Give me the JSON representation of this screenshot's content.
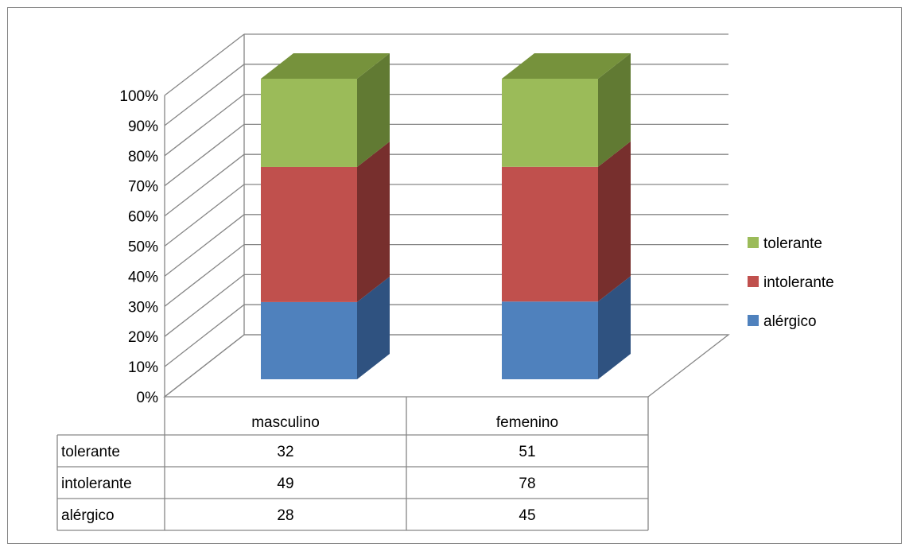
{
  "chart_data": {
    "type": "bar",
    "stacked": true,
    "normalized": true,
    "three_d": true,
    "categories": [
      "masculino",
      "femenino"
    ],
    "series": [
      {
        "name": "alérgico",
        "values": [
          28,
          45
        ],
        "color": "#4f81bd",
        "side_color": "#2f5280",
        "top_color": "#4a76ad"
      },
      {
        "name": "intolerante",
        "values": [
          49,
          78
        ],
        "color": "#c0504d",
        "side_color": "#772f2d",
        "top_color": "#a8433f"
      },
      {
        "name": "tolerante",
        "values": [
          32,
          51
        ],
        "color": "#9bbb59",
        "side_color": "#617a33",
        "top_color": "#76923c"
      }
    ],
    "y_ticks": [
      "0%",
      "10%",
      "20%",
      "30%",
      "40%",
      "50%",
      "60%",
      "70%",
      "80%",
      "90%",
      "100%"
    ],
    "ylim": [
      0,
      100
    ],
    "grid": true,
    "legend_position": "right",
    "legend_order": [
      "tolerante",
      "intolerante",
      "alérgico"
    ],
    "data_table": {
      "rows": [
        {
          "label": "tolerante",
          "values": [
            "32",
            "51"
          ]
        },
        {
          "label": "intolerante",
          "values": [
            "49",
            "78"
          ]
        },
        {
          "label": "alérgico",
          "values": [
            "28",
            "45"
          ]
        }
      ]
    }
  }
}
